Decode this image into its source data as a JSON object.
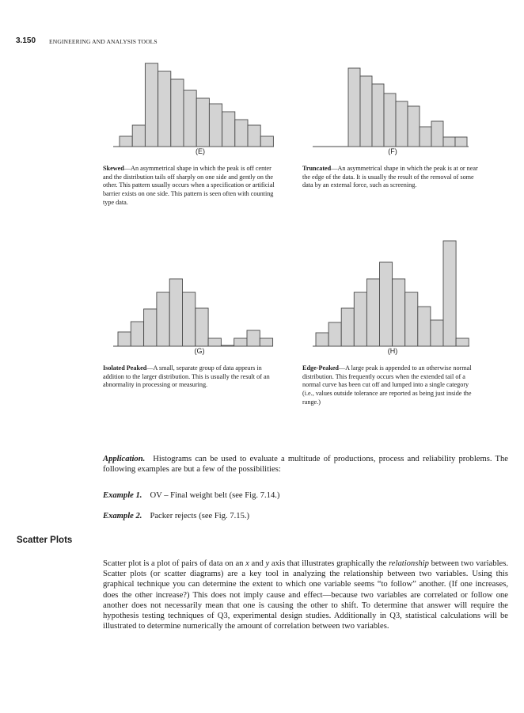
{
  "header": {
    "page_number": "3.150",
    "running_head": "ENGINEERING AND ANALYSIS TOOLS"
  },
  "chart_data": [
    {
      "type": "bar",
      "label": "(E)",
      "values": [
        13,
        27,
        105,
        95,
        85,
        71,
        61,
        54,
        44,
        34,
        27,
        13
      ]
    },
    {
      "type": "bar",
      "label": "(F)",
      "values": [
        99,
        89,
        79,
        67,
        57,
        51,
        25,
        32,
        12,
        12
      ]
    },
    {
      "type": "bar",
      "label": "(G)",
      "values": [
        18,
        31,
        47,
        68,
        85,
        68,
        48,
        10,
        1,
        10,
        20,
        10
      ]
    },
    {
      "type": "bar",
      "label": "(H)",
      "values": [
        17,
        30,
        48,
        68,
        85,
        106,
        85,
        68,
        50,
        33,
        133,
        10
      ]
    }
  ],
  "captions": {
    "E": {
      "term": "Skewed",
      "text": "—An asymmetrical shape in which the peak is off center and the distribution tails off sharply on one side and gently on the other. This pattern usually occurs when a specification or artificial barrier exists on one side. This pattern is seen often with counting type data."
    },
    "F": {
      "term": "Truncated",
      "text": "—An asymmetrical shape in which the peak is at or near the edge of the data. It is usually the result of the removal of some data by an external force, such as screening."
    },
    "G": {
      "term": "Isolated Peaked",
      "text": "—A small, separate group of data appears in addition to the larger distribution. This is usually the result of an abnormality in processing or measuring."
    },
    "H": {
      "term": "Edge-Peaked",
      "text": "—A large peak is appended to an otherwise normal distribution. This frequently occurs when the extended tail of a normal curve has been cut off and lumped into a single category (i.e., values outside tolerance are reported as being just inside the range.)"
    }
  },
  "application": {
    "lead": "Application.",
    "text": "Histograms can be used to evaluate a multitude of productions, process and reliability problems. The following examples are but a few of the possibilities:"
  },
  "examples": [
    {
      "lead": "Example 1.",
      "text": "OV – Final weight belt (see Fig. 7.14.)"
    },
    {
      "lead": "Example 2.",
      "text": "Packer rejects (see Fig. 7.15.)"
    }
  ],
  "scatter": {
    "heading": "Scatter Plots",
    "p_before_x": "Scatter plot is a plot of pairs of data on an ",
    "x": "x",
    "p_and": " and ",
    "y": "y",
    "p_mid": " axis that illustrates graphically the ",
    "relationship": "relationship",
    "p_rest": " between two variables. Scatter plots (or scatter diagrams) are a key tool in analyzing the relationship between two variables. Using this graphical technique you can determine the extent to which one variable seems “to follow” another. (If one increases, does the other increase?) This does not imply cause and effect—because two variables are correlated or follow one another does not necessarily mean that one is causing the other to shift. To determine that answer will require the hypothesis testing techniques of Q3, experimental design studies. Additionally in Q3, statistical calculations will be illustrated to determine numerically the amount of correlation between two variables."
  }
}
